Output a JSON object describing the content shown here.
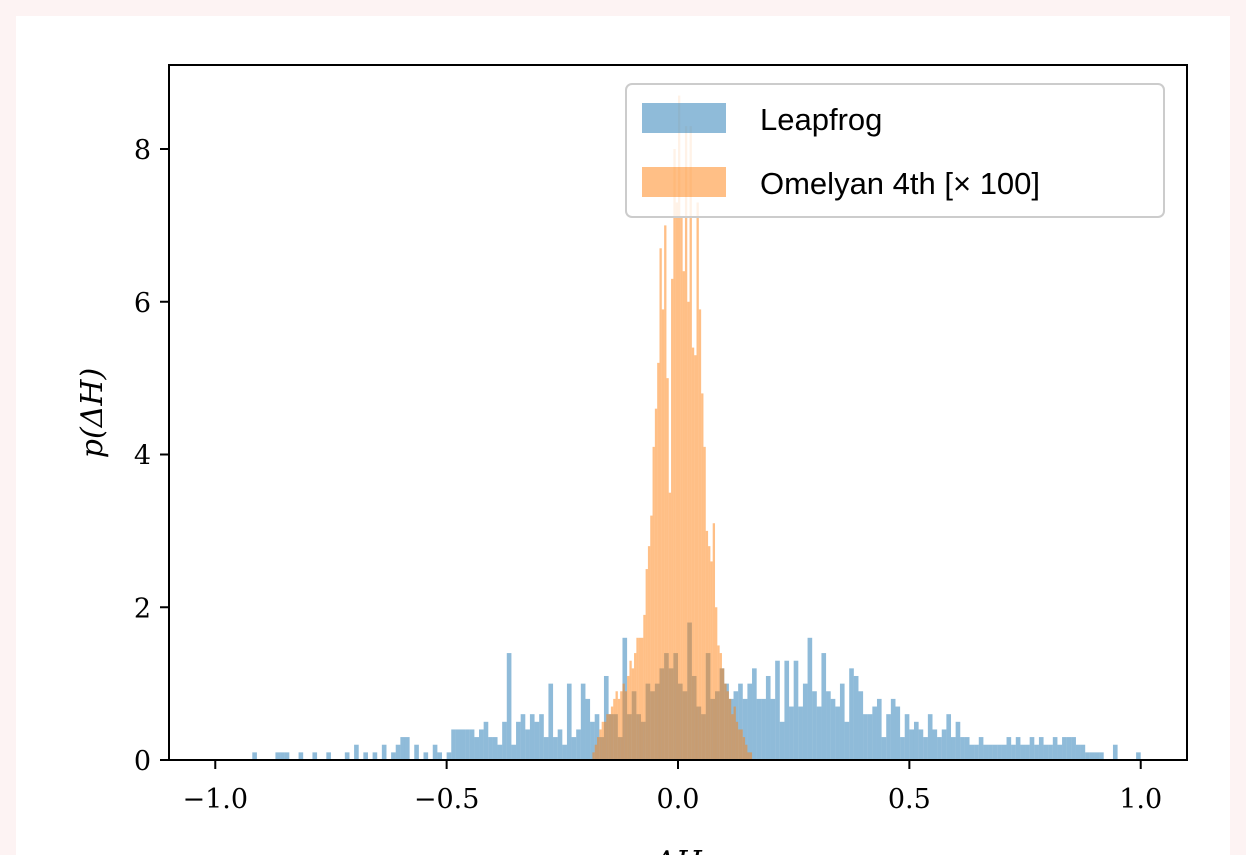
{
  "chart_data": {
    "type": "bar",
    "xlabel": "ΔH",
    "ylabel": "p(ΔH)",
    "xlim": [
      -1.1,
      1.1
    ],
    "ylim": [
      0,
      9.1
    ],
    "xticks": [
      -1.0,
      -0.5,
      0.0,
      0.5,
      1.0
    ],
    "xtick_labels": [
      "−1.0",
      "−0.5",
      "0.0",
      "0.5",
      "1.0"
    ],
    "yticks": [
      0,
      2,
      4,
      6,
      8
    ],
    "ytick_labels": [
      "0",
      "2",
      "4",
      "6",
      "8"
    ],
    "grid": false,
    "legend_position": "top-right",
    "series": [
      {
        "name": "Leapfrog",
        "color": "#1f77b4",
        "bin_width": 0.01,
        "bins": [
          [
            -0.92,
            0.1
          ],
          [
            -0.87,
            0.1
          ],
          [
            -0.86,
            0.1
          ],
          [
            -0.85,
            0.1
          ],
          [
            -0.82,
            0.1
          ],
          [
            -0.79,
            0.1
          ],
          [
            -0.76,
            0.1
          ],
          [
            -0.72,
            0.1
          ],
          [
            -0.7,
            0.2
          ],
          [
            -0.68,
            0.1
          ],
          [
            -0.66,
            0.1
          ],
          [
            -0.64,
            0.2
          ],
          [
            -0.62,
            0.1
          ],
          [
            -0.61,
            0.2
          ],
          [
            -0.6,
            0.3
          ],
          [
            -0.59,
            0.3
          ],
          [
            -0.57,
            0.2
          ],
          [
            -0.55,
            0.1
          ],
          [
            -0.53,
            0.2
          ],
          [
            -0.52,
            0.1
          ],
          [
            -0.5,
            0.1
          ],
          [
            -0.49,
            0.4
          ],
          [
            -0.48,
            0.4
          ],
          [
            -0.47,
            0.4
          ],
          [
            -0.46,
            0.4
          ],
          [
            -0.45,
            0.4
          ],
          [
            -0.44,
            0.3
          ],
          [
            -0.43,
            0.4
          ],
          [
            -0.42,
            0.5
          ],
          [
            -0.41,
            0.3
          ],
          [
            -0.4,
            0.3
          ],
          [
            -0.39,
            0.2
          ],
          [
            -0.38,
            0.5
          ],
          [
            -0.37,
            1.4
          ],
          [
            -0.36,
            0.2
          ],
          [
            -0.35,
            0.5
          ],
          [
            -0.34,
            0.6
          ],
          [
            -0.33,
            0.4
          ],
          [
            -0.32,
            0.6
          ],
          [
            -0.31,
            0.5
          ],
          [
            -0.3,
            0.6
          ],
          [
            -0.29,
            0.3
          ],
          [
            -0.28,
            1.0
          ],
          [
            -0.27,
            0.3
          ],
          [
            -0.26,
            0.4
          ],
          [
            -0.25,
            0.2
          ],
          [
            -0.24,
            1.0
          ],
          [
            -0.23,
            0.3
          ],
          [
            -0.22,
            0.4
          ],
          [
            -0.21,
            1.0
          ],
          [
            -0.2,
            0.8
          ],
          [
            -0.19,
            0.5
          ],
          [
            -0.18,
            0.6
          ],
          [
            -0.17,
            0.3
          ],
          [
            -0.16,
            1.1
          ],
          [
            -0.15,
            0.6
          ],
          [
            -0.14,
            0.6
          ],
          [
            -0.13,
            0.3
          ],
          [
            -0.12,
            1.6
          ],
          [
            -0.11,
            0.6
          ],
          [
            -0.1,
            0.9
          ],
          [
            -0.09,
            0.6
          ],
          [
            -0.08,
            0.5
          ],
          [
            -0.07,
            1.0
          ],
          [
            -0.06,
            0.9
          ],
          [
            -0.05,
            1.0
          ],
          [
            -0.04,
            1.2
          ],
          [
            -0.03,
            1.4
          ],
          [
            -0.02,
            1.2
          ],
          [
            -0.01,
            1.4
          ],
          [
            0.0,
            1.0
          ],
          [
            0.01,
            0.9
          ],
          [
            0.02,
            1.8
          ],
          [
            0.03,
            1.1
          ],
          [
            0.04,
            0.7
          ],
          [
            0.05,
            0.6
          ],
          [
            0.06,
            1.4
          ],
          [
            0.07,
            0.8
          ],
          [
            0.08,
            0.9
          ],
          [
            0.09,
            1.2
          ],
          [
            0.1,
            1.0
          ],
          [
            0.11,
            0.8
          ],
          [
            0.12,
            0.9
          ],
          [
            0.13,
            1.0
          ],
          [
            0.14,
            0.8
          ],
          [
            0.15,
            1.0
          ],
          [
            0.16,
            1.2
          ],
          [
            0.17,
            0.8
          ],
          [
            0.18,
            0.8
          ],
          [
            0.19,
            1.1
          ],
          [
            0.2,
            0.8
          ],
          [
            0.21,
            1.3
          ],
          [
            0.22,
            0.5
          ],
          [
            0.23,
            1.3
          ],
          [
            0.24,
            0.7
          ],
          [
            0.25,
            1.3
          ],
          [
            0.26,
            0.7
          ],
          [
            0.27,
            1.0
          ],
          [
            0.28,
            1.6
          ],
          [
            0.29,
            0.9
          ],
          [
            0.3,
            0.7
          ],
          [
            0.31,
            1.4
          ],
          [
            0.32,
            0.9
          ],
          [
            0.33,
            0.8
          ],
          [
            0.34,
            0.7
          ],
          [
            0.35,
            1.0
          ],
          [
            0.36,
            0.5
          ],
          [
            0.37,
            1.2
          ],
          [
            0.38,
            1.1
          ],
          [
            0.39,
            0.9
          ],
          [
            0.4,
            0.6
          ],
          [
            0.41,
            0.6
          ],
          [
            0.42,
            0.7
          ],
          [
            0.43,
            0.8
          ],
          [
            0.44,
            0.3
          ],
          [
            0.45,
            0.6
          ],
          [
            0.46,
            0.8
          ],
          [
            0.47,
            0.7
          ],
          [
            0.48,
            0.3
          ],
          [
            0.49,
            0.6
          ],
          [
            0.5,
            0.4
          ],
          [
            0.51,
            0.5
          ],
          [
            0.52,
            0.4
          ],
          [
            0.53,
            0.3
          ],
          [
            0.54,
            0.6
          ],
          [
            0.55,
            0.4
          ],
          [
            0.56,
            0.3
          ],
          [
            0.57,
            0.4
          ],
          [
            0.58,
            0.6
          ],
          [
            0.59,
            0.3
          ],
          [
            0.6,
            0.5
          ],
          [
            0.61,
            0.3
          ],
          [
            0.62,
            0.3
          ],
          [
            0.63,
            0.2
          ],
          [
            0.64,
            0.2
          ],
          [
            0.65,
            0.3
          ],
          [
            0.66,
            0.2
          ],
          [
            0.67,
            0.2
          ],
          [
            0.68,
            0.2
          ],
          [
            0.69,
            0.2
          ],
          [
            0.7,
            0.2
          ],
          [
            0.71,
            0.3
          ],
          [
            0.72,
            0.2
          ],
          [
            0.73,
            0.3
          ],
          [
            0.74,
            0.2
          ],
          [
            0.75,
            0.2
          ],
          [
            0.76,
            0.3
          ],
          [
            0.77,
            0.2
          ],
          [
            0.78,
            0.3
          ],
          [
            0.79,
            0.2
          ],
          [
            0.8,
            0.2
          ],
          [
            0.81,
            0.3
          ],
          [
            0.82,
            0.2
          ],
          [
            0.83,
            0.3
          ],
          [
            0.84,
            0.3
          ],
          [
            0.85,
            0.3
          ],
          [
            0.86,
            0.2
          ],
          [
            0.87,
            0.2
          ],
          [
            0.88,
            0.1
          ],
          [
            0.89,
            0.1
          ],
          [
            0.9,
            0.1
          ],
          [
            0.91,
            0.1
          ],
          [
            0.94,
            0.2
          ],
          [
            0.99,
            0.1
          ]
        ]
      },
      {
        "name": "Omelyan 4th [× 100]",
        "color": "#ff7f0e",
        "bin_width": 0.005,
        "bins": [
          [
            -0.185,
            0.1
          ],
          [
            -0.18,
            0.2
          ],
          [
            -0.175,
            0.3
          ],
          [
            -0.17,
            0.4
          ],
          [
            -0.165,
            0.5
          ],
          [
            -0.16,
            0.5
          ],
          [
            -0.155,
            0.6
          ],
          [
            -0.15,
            0.6
          ],
          [
            -0.145,
            0.7
          ],
          [
            -0.14,
            0.8
          ],
          [
            -0.135,
            0.9
          ],
          [
            -0.13,
            0.8
          ],
          [
            -0.125,
            0.9
          ],
          [
            -0.12,
            1.0
          ],
          [
            -0.115,
            0.9
          ],
          [
            -0.11,
            1.1
          ],
          [
            -0.105,
            1.3
          ],
          [
            -0.1,
            1.2
          ],
          [
            -0.095,
            1.4
          ],
          [
            -0.09,
            1.6
          ],
          [
            -0.085,
            1.6
          ],
          [
            -0.08,
            1.6
          ],
          [
            -0.075,
            1.9
          ],
          [
            -0.07,
            2.5
          ],
          [
            -0.065,
            2.8
          ],
          [
            -0.06,
            3.2
          ],
          [
            -0.055,
            4.1
          ],
          [
            -0.05,
            4.6
          ],
          [
            -0.045,
            5.2
          ],
          [
            -0.04,
            6.7
          ],
          [
            -0.035,
            5.9
          ],
          [
            -0.03,
            7.0
          ],
          [
            -0.025,
            5.0
          ],
          [
            -0.02,
            3.5
          ],
          [
            -0.015,
            6.3
          ],
          [
            -0.01,
            8.0
          ],
          [
            -0.005,
            7.3
          ],
          [
            0.0,
            8.7
          ],
          [
            0.005,
            7.1
          ],
          [
            0.01,
            6.4
          ],
          [
            0.015,
            8.3
          ],
          [
            0.02,
            6.0
          ],
          [
            0.025,
            8.3
          ],
          [
            0.03,
            5.4
          ],
          [
            0.035,
            5.3
          ],
          [
            0.04,
            7.3
          ],
          [
            0.045,
            5.9
          ],
          [
            0.05,
            4.8
          ],
          [
            0.055,
            4.1
          ],
          [
            0.06,
            3.0
          ],
          [
            0.065,
            2.8
          ],
          [
            0.07,
            2.6
          ],
          [
            0.075,
            3.1
          ],
          [
            0.08,
            2.0
          ],
          [
            0.085,
            1.5
          ],
          [
            0.09,
            1.4
          ],
          [
            0.095,
            1.2
          ],
          [
            0.1,
            1.0
          ],
          [
            0.105,
            0.9
          ],
          [
            0.11,
            0.8
          ],
          [
            0.115,
            0.6
          ],
          [
            0.12,
            0.7
          ],
          [
            0.125,
            0.5
          ],
          [
            0.13,
            0.4
          ],
          [
            0.135,
            0.4
          ],
          [
            0.14,
            0.3
          ],
          [
            0.145,
            0.2
          ],
          [
            0.15,
            0.1
          ],
          [
            0.155,
            0.1
          ]
        ]
      }
    ]
  }
}
